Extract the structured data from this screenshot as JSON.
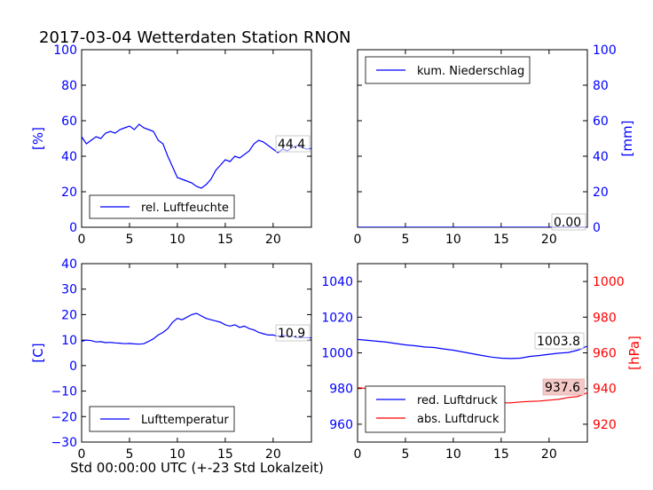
{
  "title": "2017-03-04 Wetterdaten Station RNON",
  "xlabel": "Std 00:00:00 UTC (+-23 Std Lokalzeit)",
  "colors": {
    "blue": "#0000ff",
    "red": "#ff0000"
  },
  "chart_data": [
    {
      "type": "line",
      "id": "humidity",
      "ylabel": "[%]",
      "xlim": [
        0,
        24
      ],
      "ylim": [
        0,
        100
      ],
      "xticks": [
        0,
        5,
        10,
        15,
        20
      ],
      "yticks": [
        0,
        20,
        40,
        60,
        80,
        100
      ],
      "legend": "lower-left",
      "last_value_label": "44.4",
      "series": [
        {
          "name": "rel. Luftfeuchte",
          "color": "#0000ff",
          "x": [
            0,
            0.5,
            1,
            1.5,
            2,
            2.5,
            3,
            3.5,
            4,
            4.5,
            5,
            5.5,
            6,
            6.5,
            7,
            7.5,
            8,
            8.5,
            9,
            9.5,
            10,
            10.5,
            11,
            11.5,
            12,
            12.5,
            13,
            13.5,
            14,
            14.5,
            15,
            15.5,
            16,
            16.5,
            17,
            17.5,
            18,
            18.5,
            19,
            19.5,
            20,
            20.5,
            21,
            21.5,
            22,
            22.5,
            23,
            23.5,
            24
          ],
          "y": [
            51,
            47,
            49,
            51,
            50,
            53,
            54,
            53,
            55,
            56,
            57,
            55,
            58,
            56,
            55,
            54,
            49,
            47,
            40,
            34,
            28,
            27,
            26,
            25,
            23,
            22,
            24,
            27,
            32,
            35,
            38,
            37,
            40,
            39,
            41,
            43,
            47,
            49,
            48,
            46,
            44,
            42,
            44,
            43,
            45,
            46,
            45,
            44,
            44.4
          ]
        }
      ]
    },
    {
      "type": "line",
      "id": "precip",
      "ylabel": "[mm]",
      "xlim": [
        0,
        24
      ],
      "ylim": [
        0,
        100
      ],
      "xticks": [
        0,
        5,
        10,
        15,
        20
      ],
      "yticks": [
        0,
        20,
        40,
        60,
        80,
        100
      ],
      "legend": "top-left",
      "last_value_label": "0.00",
      "series": [
        {
          "name": "kum. Niederschlag",
          "color": "#0000ff",
          "x": [
            0,
            24
          ],
          "y": [
            0,
            0
          ]
        }
      ]
    },
    {
      "type": "line",
      "id": "temperature",
      "ylabel": "[C]",
      "xlim": [
        0,
        24
      ],
      "ylim": [
        -30,
        40
      ],
      "xticks": [
        0,
        5,
        10,
        15,
        20
      ],
      "yticks": [
        -30,
        -20,
        -10,
        0,
        10,
        20,
        30,
        40
      ],
      "legend": "lower-left",
      "last_value_label": "10.9",
      "series": [
        {
          "name": "Lufttemperatur",
          "color": "#0000ff",
          "x": [
            0,
            0.5,
            1,
            1.5,
            2,
            2.5,
            3,
            3.5,
            4,
            4.5,
            5,
            5.5,
            6,
            6.5,
            7,
            7.5,
            8,
            8.5,
            9,
            9.5,
            10,
            10.5,
            11,
            11.5,
            12,
            12.5,
            13,
            13.5,
            14,
            14.5,
            15,
            15.5,
            16,
            16.5,
            17,
            17.5,
            18,
            18.5,
            19,
            19.5,
            20,
            20.5,
            21,
            21.5,
            22,
            22.5,
            23,
            23.5,
            24
          ],
          "y": [
            9.5,
            10,
            9.8,
            9.3,
            9.4,
            9.0,
            9.1,
            8.9,
            8.8,
            8.6,
            8.7,
            8.5,
            8.4,
            8.6,
            9.5,
            10.5,
            12,
            13,
            14.5,
            17,
            18.5,
            18,
            19,
            20,
            20.5,
            19.5,
            18.5,
            18,
            17.5,
            17,
            16,
            15.5,
            16,
            15,
            15.5,
            14.5,
            14,
            13,
            12.5,
            12,
            12,
            11.5,
            12,
            11.5,
            11.5,
            11,
            11,
            11,
            10.9
          ]
        }
      ]
    },
    {
      "type": "line",
      "id": "pressure",
      "ylabel": "[hPa]",
      "xlim": [
        0,
        24
      ],
      "ylim": [
        950,
        1050
      ],
      "y2lim": [
        910,
        1010
      ],
      "xticks": [
        0,
        5,
        10,
        15,
        20
      ],
      "yticks": [
        960,
        980,
        1000,
        1020,
        1040
      ],
      "y2ticks": [
        920,
        940,
        960,
        980,
        1000
      ],
      "legend": "lower-left",
      "last_value_label": "1003.8",
      "last_value_label_2": "937.6",
      "series": [
        {
          "name": "red. Luftdruck",
          "color": "#0000ff",
          "axis": "left",
          "x": [
            0,
            1,
            2,
            3,
            4,
            5,
            6,
            7,
            8,
            9,
            10,
            11,
            12,
            13,
            14,
            15,
            16,
            17,
            18,
            19,
            20,
            21,
            22,
            23,
            24
          ],
          "y": [
            1007.5,
            1007,
            1006.5,
            1006,
            1005.2,
            1004.5,
            1004,
            1003.3,
            1003,
            1002.2,
            1001.5,
            1000.5,
            999.5,
            998.5,
            997.6,
            997,
            996.8,
            997,
            998,
            998.5,
            999.2,
            999.8,
            1000.2,
            1001.5,
            1003.8
          ]
        },
        {
          "name": "abs. Luftdruck",
          "color": "#ff0000",
          "axis": "right",
          "x": [
            0,
            1,
            2,
            3,
            4,
            5,
            6,
            7,
            8,
            9,
            10,
            11,
            12,
            13,
            14,
            15,
            16,
            17,
            18,
            19,
            20,
            21,
            22,
            23,
            24
          ],
          "y": [
            940.5,
            940,
            939.5,
            939,
            938.5,
            938,
            937.5,
            937.5,
            937.5,
            937.2,
            936.8,
            936,
            935,
            934,
            932.8,
            932,
            932,
            932.5,
            932.8,
            933,
            933.5,
            934,
            935,
            935.5,
            937.6
          ]
        }
      ]
    }
  ]
}
